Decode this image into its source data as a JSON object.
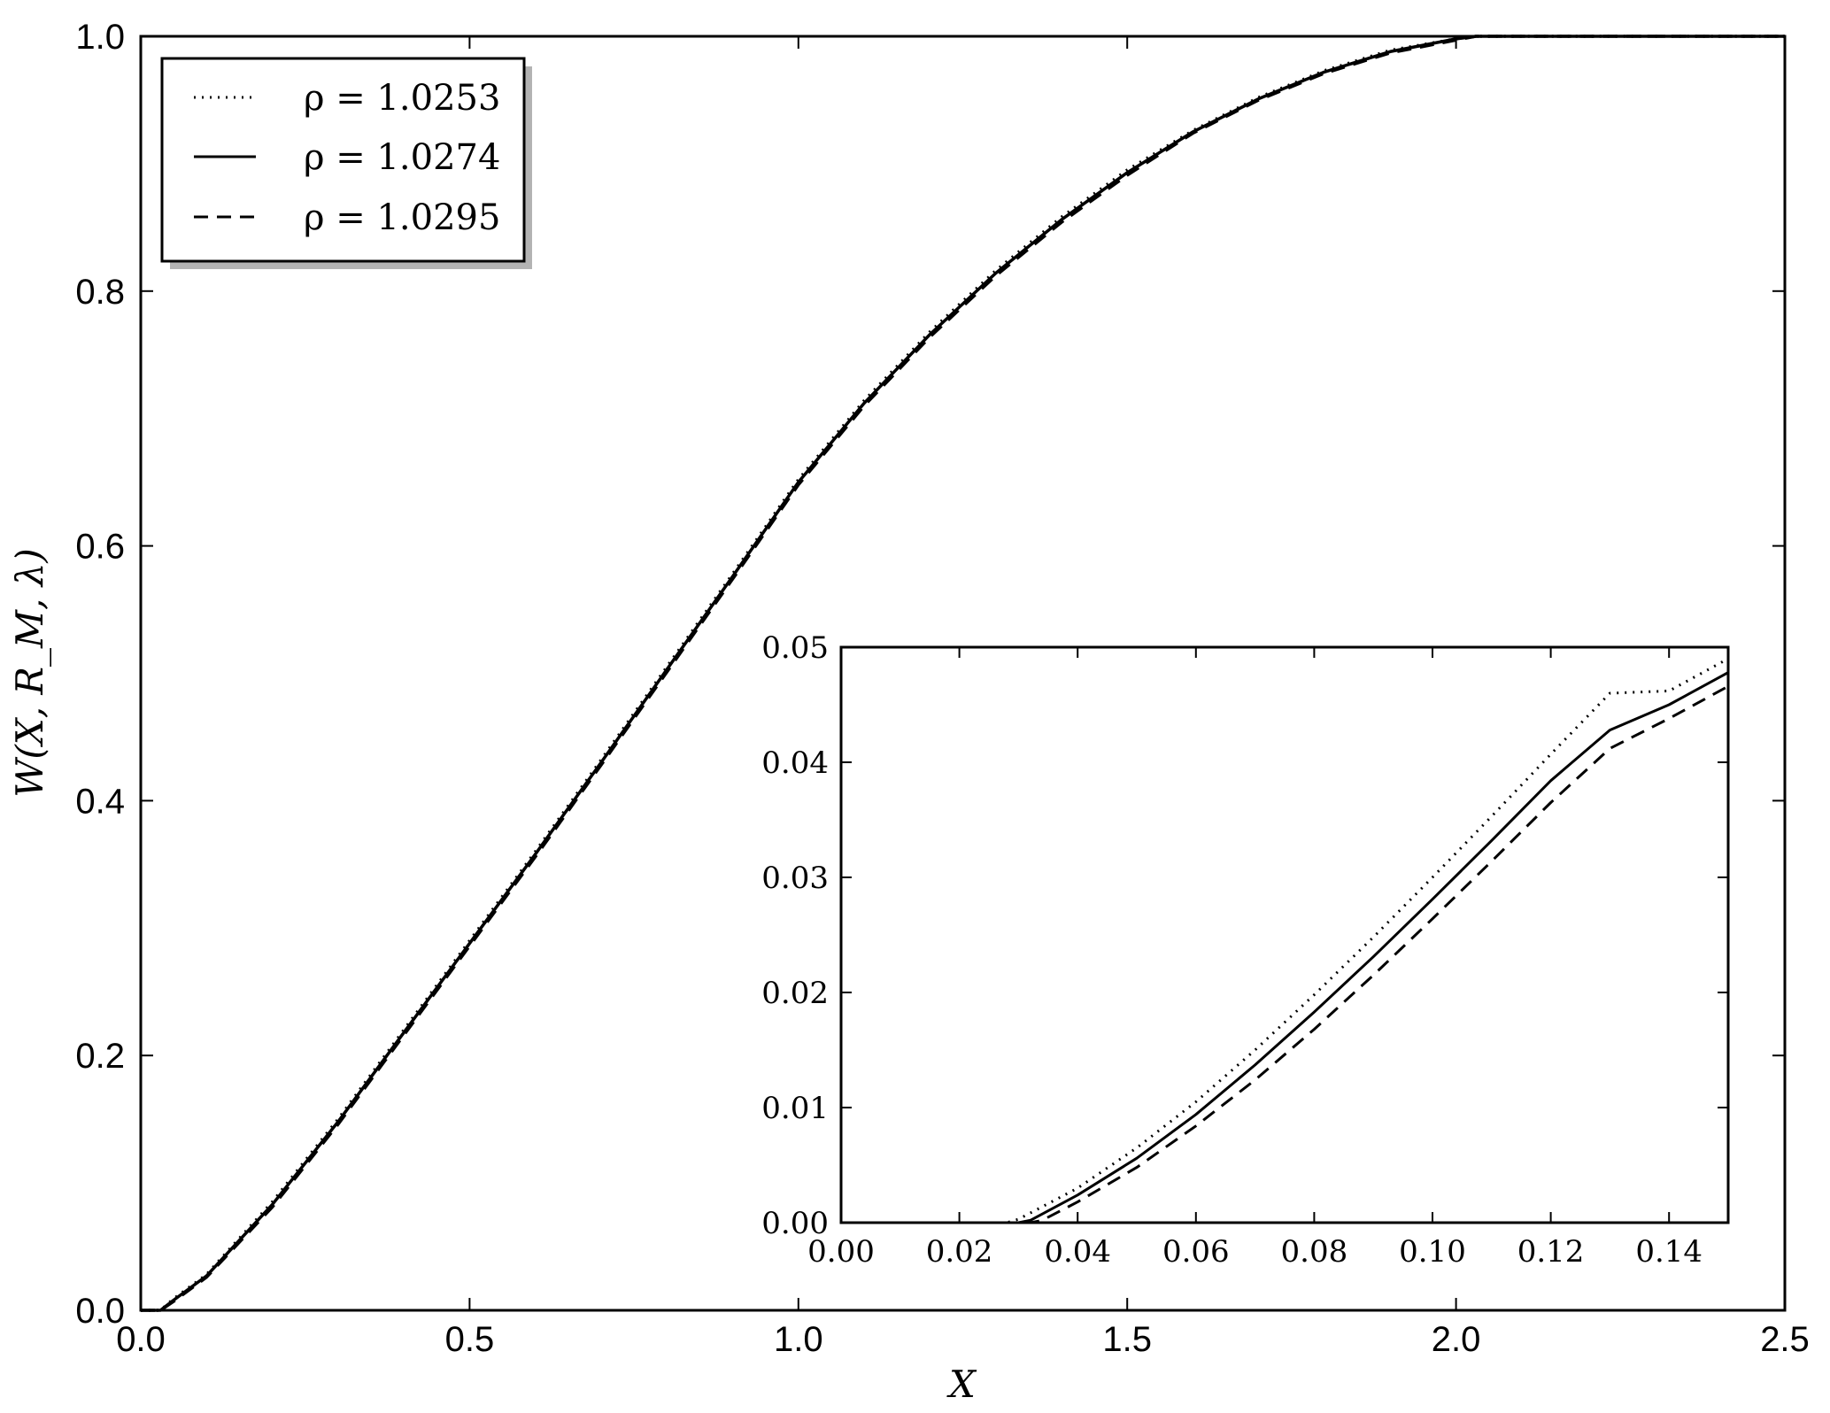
{
  "chart_data": [
    {
      "type": "line",
      "xlabel": "X",
      "ylabel": "W(X, R_M, λ)",
      "xlim": [
        0.0,
        2.5
      ],
      "ylim": [
        0.0,
        1.0
      ],
      "xticks": [
        "0.0",
        "0.5",
        "1.0",
        "1.5",
        "2.0",
        "2.5"
      ],
      "yticks": [
        "0.0",
        "0.2",
        "0.4",
        "0.6",
        "0.8",
        "1.0"
      ],
      "grid": false,
      "legend_position": "top-left",
      "series": [
        {
          "name": "ρ = 1.0253",
          "style": "dotted",
          "x": [
            0.0,
            0.03,
            0.05,
            0.1,
            0.2,
            0.3,
            0.4,
            0.5,
            0.6,
            0.7,
            0.8,
            0.9,
            1.0,
            1.1,
            1.2,
            1.3,
            1.4,
            1.5,
            1.6,
            1.7,
            1.8,
            1.9,
            2.0,
            2.03,
            2.2,
            2.5
          ],
          "y": [
            0.0,
            0.0,
            0.009,
            0.028,
            0.085,
            0.15,
            0.22,
            0.29,
            0.36,
            0.432,
            0.505,
            0.578,
            0.652,
            0.714,
            0.768,
            0.816,
            0.858,
            0.895,
            0.926,
            0.952,
            0.973,
            0.989,
            0.998,
            1.0,
            1.0,
            1.0
          ]
        },
        {
          "name": "ρ = 1.0274",
          "style": "solid",
          "x": [
            0.0,
            0.03,
            0.05,
            0.1,
            0.2,
            0.3,
            0.4,
            0.5,
            0.6,
            0.7,
            0.8,
            0.9,
            1.0,
            1.1,
            1.2,
            1.3,
            1.4,
            1.5,
            1.6,
            1.7,
            1.8,
            1.9,
            2.0,
            2.03,
            2.2,
            2.5
          ],
          "y": [
            0.0,
            0.0,
            0.008,
            0.027,
            0.083,
            0.148,
            0.218,
            0.288,
            0.358,
            0.43,
            0.503,
            0.576,
            0.65,
            0.712,
            0.766,
            0.814,
            0.856,
            0.893,
            0.925,
            0.951,
            0.972,
            0.988,
            0.998,
            1.0,
            1.0,
            1.0
          ]
        },
        {
          "name": "ρ = 1.0295",
          "style": "dashed",
          "x": [
            0.0,
            0.03,
            0.05,
            0.1,
            0.2,
            0.3,
            0.4,
            0.5,
            0.6,
            0.7,
            0.8,
            0.9,
            1.0,
            1.1,
            1.2,
            1.3,
            1.4,
            1.5,
            1.6,
            1.7,
            1.8,
            1.9,
            2.0,
            2.03,
            2.2,
            2.5
          ],
          "y": [
            0.0,
            0.0,
            0.007,
            0.026,
            0.081,
            0.146,
            0.216,
            0.286,
            0.356,
            0.428,
            0.501,
            0.574,
            0.648,
            0.71,
            0.764,
            0.812,
            0.854,
            0.891,
            0.924,
            0.95,
            0.971,
            0.987,
            0.997,
            1.0,
            1.0,
            1.0
          ]
        }
      ]
    },
    {
      "type": "line",
      "role": "inset",
      "xlim": [
        0.0,
        0.15
      ],
      "ylim": [
        0.0,
        0.05
      ],
      "xticks": [
        "0.00",
        "0.02",
        "0.04",
        "0.06",
        "0.08",
        "0.10",
        "0.12",
        "0.14"
      ],
      "yticks": [
        "0.00",
        "0.01",
        "0.02",
        "0.03",
        "0.04",
        "0.05"
      ],
      "grid": false,
      "series": [
        {
          "name": "ρ = 1.0253",
          "style": "dotted",
          "x": [
            0.0,
            0.028,
            0.03,
            0.04,
            0.05,
            0.06,
            0.07,
            0.08,
            0.09,
            0.1,
            0.11,
            0.12,
            0.13,
            0.14,
            0.15
          ],
          "y": [
            0.0,
            0.0,
            0.0003,
            0.003,
            0.0065,
            0.0105,
            0.015,
            0.0198,
            0.0248,
            0.03,
            0.0353,
            0.0407,
            0.046,
            0.0462,
            0.049
          ]
        },
        {
          "name": "ρ = 1.0274",
          "style": "solid",
          "x": [
            0.0,
            0.03,
            0.032,
            0.04,
            0.05,
            0.06,
            0.07,
            0.08,
            0.09,
            0.1,
            0.11,
            0.12,
            0.13,
            0.14,
            0.15
          ],
          "y": [
            0.0,
            0.0,
            0.0002,
            0.0024,
            0.0056,
            0.0094,
            0.0137,
            0.0183,
            0.0231,
            0.0281,
            0.0332,
            0.0384,
            0.0428,
            0.045,
            0.0478
          ]
        },
        {
          "name": "ρ = 1.0295",
          "style": "dashed",
          "x": [
            0.0,
            0.032,
            0.034,
            0.04,
            0.05,
            0.06,
            0.07,
            0.08,
            0.09,
            0.1,
            0.11,
            0.12,
            0.13,
            0.14,
            0.15
          ],
          "y": [
            0.0,
            0.0,
            0.0002,
            0.0018,
            0.0048,
            0.0084,
            0.0124,
            0.0168,
            0.0215,
            0.0264,
            0.0314,
            0.0365,
            0.0412,
            0.0438,
            0.0466
          ]
        }
      ]
    }
  ]
}
